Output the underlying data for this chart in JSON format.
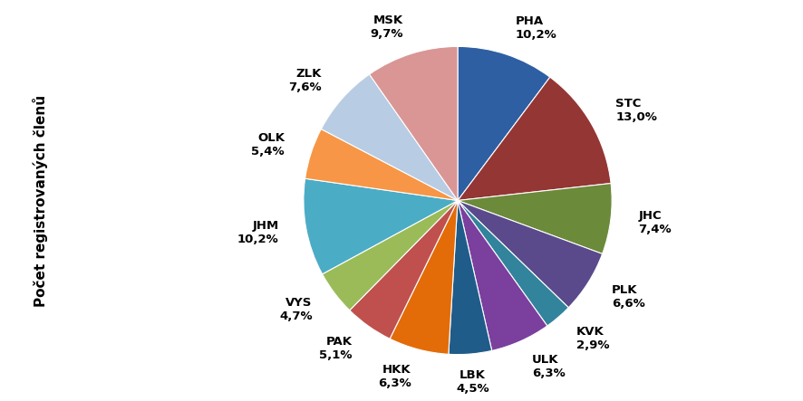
{
  "labels": [
    "PHA",
    "STC",
    "JHC",
    "PLK",
    "KVK",
    "ULK",
    "LBK",
    "HKK",
    "PAK",
    "VYS",
    "JHM",
    "OLK",
    "ZLK",
    "MSK"
  ],
  "values": [
    10.2,
    13.0,
    7.4,
    6.6,
    2.9,
    6.3,
    4.5,
    6.3,
    5.1,
    4.7,
    10.2,
    5.4,
    7.6,
    9.7
  ],
  "colors": [
    "#2E5FA3",
    "#943634",
    "#6B8A3A",
    "#5A4A8B",
    "#31849B",
    "#7B3F9E",
    "#1F5C8A",
    "#E36C09",
    "#C0504D",
    "#9BBB59",
    "#4BACC6",
    "#F79646",
    "#B8CCE4",
    "#D99694"
  ],
  "ylabel": "Počet registrovaných členů",
  "startangle": 90,
  "label_fontsize": 9.5,
  "ylabel_fontsize": 11
}
